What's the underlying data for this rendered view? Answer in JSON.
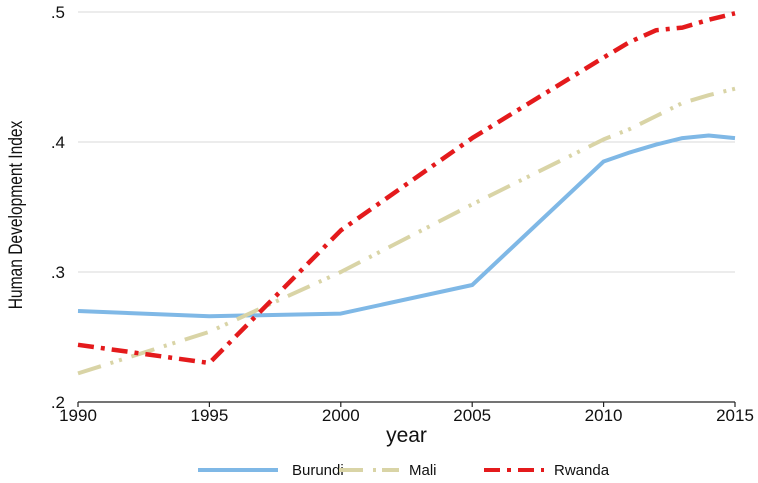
{
  "chart_data": {
    "type": "line",
    "title": "",
    "xlabel": "year",
    "ylabel": "Human Development Index",
    "xlim": [
      1990,
      2015
    ],
    "ylim": [
      0.2,
      0.5
    ],
    "x_ticks": [
      1990,
      1995,
      2000,
      2005,
      2010,
      2015
    ],
    "x_tick_labels": [
      "1990",
      "1995",
      "2000",
      "2005",
      "2010",
      "2015"
    ],
    "y_ticks": [
      0.2,
      0.3,
      0.4,
      0.5
    ],
    "y_tick_labels": [
      ".2",
      ".3",
      ".4",
      ".5"
    ],
    "grid": "horizontal",
    "legend_position": "bottom",
    "series": [
      {
        "name": "Burundi",
        "color": "#7fb8e6",
        "style": "solid",
        "x": [
          1990,
          1995,
          2000,
          2005,
          2010,
          2011,
          2012,
          2013,
          2014,
          2015
        ],
        "y": [
          0.27,
          0.266,
          0.268,
          0.29,
          0.385,
          0.392,
          0.398,
          0.403,
          0.405,
          0.403
        ]
      },
      {
        "name": "Mali",
        "color": "#d9d4a6",
        "style": "dash",
        "x": [
          1990,
          1995,
          2000,
          2005,
          2010,
          2011,
          2012,
          2013,
          2014,
          2015
        ],
        "y": [
          0.222,
          0.254,
          0.3,
          0.352,
          0.402,
          0.41,
          0.42,
          0.43,
          0.436,
          0.441
        ]
      },
      {
        "name": "Rwanda",
        "color": "#e41a1c",
        "style": "dashdot",
        "x": [
          1990,
          1995,
          2000,
          2005,
          2010,
          2011,
          2012,
          2013,
          2014,
          2015
        ],
        "y": [
          0.244,
          0.23,
          0.332,
          0.403,
          0.465,
          0.477,
          0.486,
          0.488,
          0.494,
          0.499
        ]
      }
    ]
  }
}
